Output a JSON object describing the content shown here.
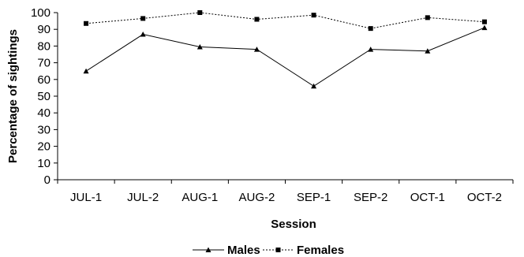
{
  "chart_data": {
    "type": "line",
    "title": "",
    "xlabel": "Session",
    "ylabel": "Percentage of sightings",
    "categories": [
      "JUL-1",
      "JUL-2",
      "AUG-1",
      "AUG-2",
      "SEP-1",
      "SEP-2",
      "OCT-1",
      "OCT-2"
    ],
    "ylim": [
      0,
      100
    ],
    "yticks": [
      "0",
      "10",
      "20",
      "30",
      "40",
      "50",
      "60",
      "70",
      "80",
      "90",
      "100"
    ],
    "grid": false,
    "legend_position": "bottom",
    "series": [
      {
        "name": "Males",
        "values": [
          65,
          87,
          79.5,
          78,
          56,
          78,
          77,
          91
        ],
        "color": "#000000",
        "line_style": "solid",
        "marker": "triangle"
      },
      {
        "name": "Females",
        "values": [
          93.5,
          96.5,
          100,
          96,
          98.5,
          90.5,
          97,
          94.5
        ],
        "color": "#000000",
        "line_style": "dotted",
        "marker": "square"
      }
    ]
  }
}
